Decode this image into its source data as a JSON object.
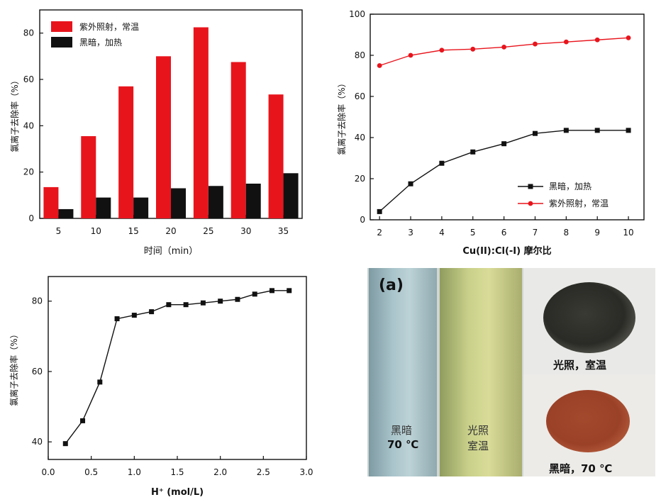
{
  "chart_data": [
    {
      "type": "bar",
      "categories": [
        "5",
        "10",
        "15",
        "20",
        "25",
        "30",
        "35"
      ],
      "series": [
        {
          "name": "紫外照射，常温",
          "color": "#e8141c",
          "values": [
            13.5,
            35.5,
            57,
            70,
            82.5,
            67.5,
            53.5
          ]
        },
        {
          "name": "黑暗，加热",
          "color": "#111111",
          "values": [
            4,
            9,
            9,
            13,
            14,
            15,
            19.5
          ]
        }
      ],
      "xlabel": "时间（min）",
      "ylabel": "氯离子去除率（%）",
      "ylim": [
        0,
        90
      ],
      "yticks": [
        "0",
        "20",
        "40",
        "60",
        "80"
      ],
      "legend_position": "top-left"
    },
    {
      "type": "line",
      "x": [
        2,
        3,
        4,
        5,
        6,
        7,
        8,
        9,
        10
      ],
      "xticks": [
        "2",
        "3",
        "4",
        "5",
        "6",
        "7",
        "8",
        "9",
        "10"
      ],
      "series": [
        {
          "name": "黑暗，加热",
          "color": "#111111",
          "marker": "square",
          "values": [
            4,
            17.5,
            27.5,
            33,
            37,
            42,
            43.5,
            43.5,
            43.5
          ]
        },
        {
          "name": "紫外照射，常温",
          "color": "#e8141c",
          "marker": "circle",
          "values": [
            75,
            80,
            82.5,
            83,
            84,
            85.5,
            86.5,
            87.5,
            88.5
          ]
        }
      ],
      "xlabel": "Cu(II):Cl(-I) 摩尔比",
      "ylabel": "氯离子去除率（%）",
      "xlim": [
        1.7,
        10.5
      ],
      "ylim": [
        0,
        100
      ],
      "yticks": [
        "0",
        "20",
        "40",
        "60",
        "80",
        "100"
      ],
      "legend_position": "bottom-right"
    },
    {
      "type": "line",
      "x": [
        0.2,
        0.4,
        0.6,
        0.8,
        1.0,
        1.2,
        1.4,
        1.6,
        1.8,
        2.0,
        2.2,
        2.4,
        2.6,
        2.8
      ],
      "xticks": [
        "0.0",
        "0.5",
        "1.0",
        "1.5",
        "2.0",
        "2.5",
        "3.0"
      ],
      "series": [
        {
          "color": "#111111",
          "marker": "square",
          "values": [
            39.5,
            46,
            57,
            75,
            76,
            77,
            79,
            79,
            79.5,
            80,
            80.5,
            82,
            83,
            83
          ]
        }
      ],
      "xlabel": "H⁺ (mol/L)",
      "ylabel": "氯离子去除率（%）",
      "xlim": [
        0,
        3.0
      ],
      "ylim": [
        35,
        87
      ],
      "yticks": [
        "40",
        "60",
        "80"
      ]
    }
  ],
  "photo": {
    "tag": "(a)",
    "tube1_line1": "黑暗",
    "tube1_line2": "70 ℃",
    "tube2_line1": "光照",
    "tube2_line2": "室温",
    "powder1_label": "光照，室温",
    "powder2_label": "黑暗，70 ℃"
  }
}
